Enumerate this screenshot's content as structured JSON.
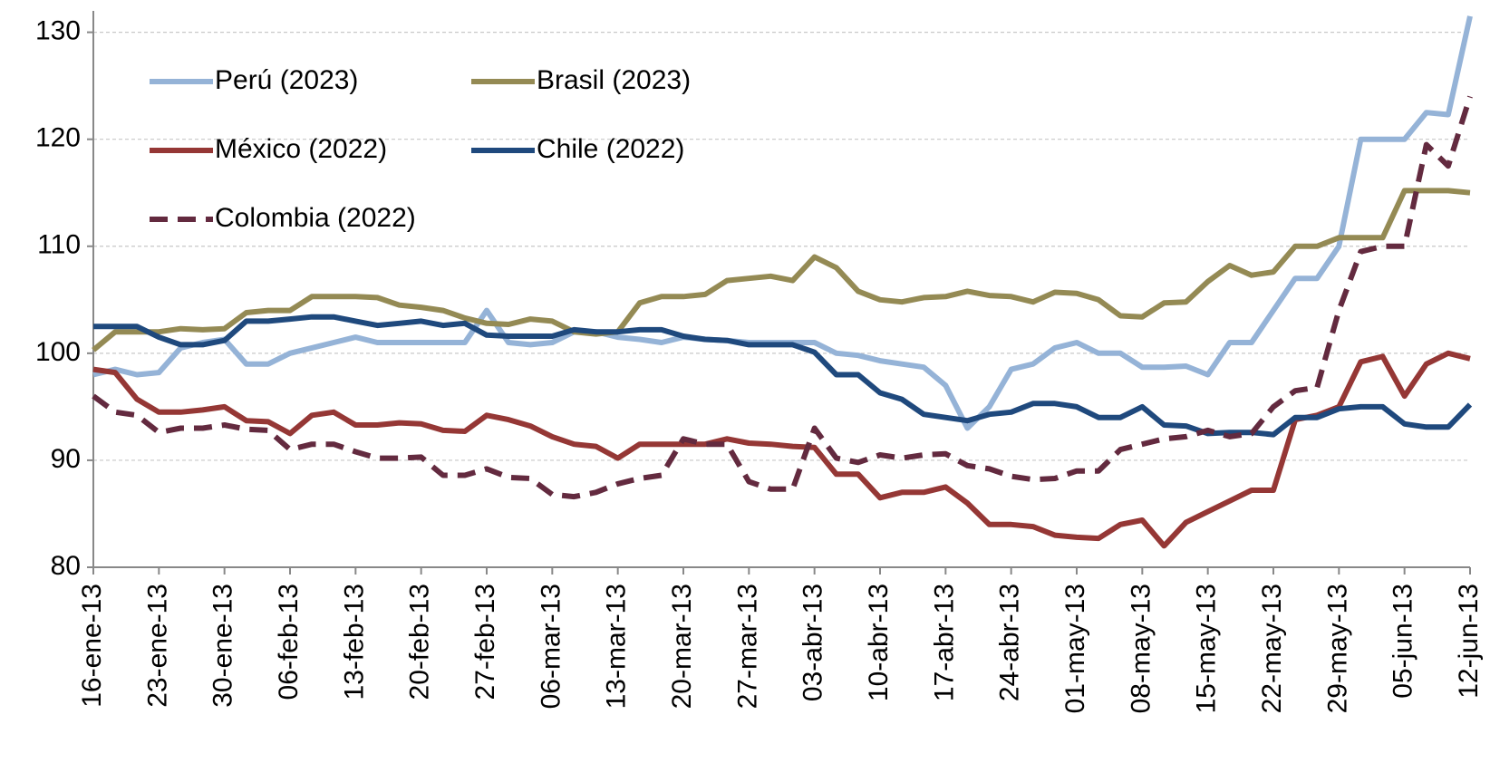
{
  "chart_data": {
    "type": "line",
    "categories": [
      "16-ene-13",
      null,
      null,
      "23-ene-13",
      null,
      null,
      "30-ene-13",
      null,
      null,
      "06-feb-13",
      null,
      null,
      "13-feb-13",
      null,
      null,
      "20-feb-13",
      null,
      null,
      "27-feb-13",
      null,
      null,
      "06-mar-13",
      null,
      null,
      "13-mar-13",
      null,
      null,
      "20-mar-13",
      null,
      null,
      "27-mar-13",
      null,
      null,
      "03-abr-13",
      null,
      null,
      "10-abr-13",
      null,
      null,
      "17-abr-13",
      null,
      null,
      "24-abr-13",
      null,
      null,
      "01-may-13",
      null,
      null,
      "08-may-13",
      null,
      null,
      "15-may-13",
      null,
      null,
      "22-may-13",
      null,
      null,
      "29-may-13",
      null,
      null,
      "05-jun-13",
      null,
      null,
      "12-jun-13"
    ],
    "series": [
      {
        "name": "Perú (2023)",
        "color": "#95b3d7",
        "dashed": false,
        "values": [
          98,
          98.5,
          98,
          98.2,
          100.5,
          101,
          101.3,
          99,
          99,
          100,
          100.5,
          101,
          101.5,
          101,
          101,
          101,
          101,
          101,
          104,
          101,
          100.8,
          101,
          102,
          102,
          101.5,
          101.3,
          101,
          101.5,
          101.3,
          101.2,
          101,
          101,
          101,
          101,
          100,
          99.8,
          99.3,
          99,
          98.7,
          97,
          93,
          95,
          98.5,
          99,
          100.5,
          101,
          100,
          100,
          98.7,
          98.7,
          98.8,
          98,
          101,
          101,
          104,
          107,
          107,
          110,
          120,
          120,
          120,
          122.5,
          122.3,
          131.5
        ]
      },
      {
        "name": "Brasil (2023)",
        "color": "#948a54",
        "dashed": false,
        "values": [
          100.3,
          102,
          102,
          102,
          102.3,
          102.2,
          102.3,
          103.8,
          104,
          104,
          105.3,
          105.3,
          105.3,
          105.2,
          104.5,
          104.3,
          104,
          103.3,
          102.8,
          102.7,
          103.2,
          103,
          102,
          101.8,
          102,
          104.7,
          105.3,
          105.3,
          105.5,
          106.8,
          107,
          107.2,
          106.8,
          109,
          108,
          105.8,
          105,
          104.8,
          105.2,
          105.3,
          105.8,
          105.4,
          105.3,
          104.8,
          105.7,
          105.6,
          105,
          103.5,
          103.4,
          104.7,
          104.8,
          106.7,
          108.2,
          107.3,
          107.6,
          110,
          110,
          110.8,
          110.8,
          110.8,
          115.2,
          115.2,
          115.2,
          115
        ]
      },
      {
        "name": "México (2022)",
        "color": "#953735",
        "dashed": false,
        "values": [
          98.5,
          98.2,
          95.7,
          94.5,
          94.5,
          94.7,
          95,
          93.7,
          93.6,
          92.5,
          94.2,
          94.5,
          93.3,
          93.3,
          93.5,
          93.4,
          92.8,
          92.7,
          94.2,
          93.8,
          93.2,
          92.2,
          91.5,
          91.3,
          90.2,
          91.5,
          91.5,
          91.5,
          91.5,
          92,
          91.6,
          91.5,
          91.3,
          91.2,
          88.7,
          88.7,
          86.5,
          87,
          87,
          87.5,
          86,
          84,
          84,
          83.8,
          83,
          82.8,
          82.7,
          84,
          84.4,
          82,
          84.2,
          85.2,
          86.2,
          87.2,
          87.2,
          93.8,
          94.2,
          95,
          99.2,
          99.7,
          96,
          99,
          100,
          99.5
        ]
      },
      {
        "name": "Chile (2022)",
        "color": "#1f497d",
        "dashed": false,
        "values": [
          102.5,
          102.5,
          102.5,
          101.5,
          100.8,
          100.8,
          101.2,
          103,
          103,
          103.2,
          103.4,
          103.4,
          103,
          102.6,
          102.8,
          103,
          102.6,
          102.8,
          101.7,
          101.6,
          101.6,
          101.6,
          102.2,
          102,
          102,
          102.2,
          102.2,
          101.6,
          101.3,
          101.2,
          100.8,
          100.8,
          100.8,
          100.1,
          98,
          98,
          96.3,
          95.7,
          94.3,
          94,
          93.7,
          94.3,
          94.5,
          95.3,
          95.3,
          95,
          94,
          94,
          95,
          93.3,
          93.2,
          92.5,
          92.6,
          92.6,
          92.4,
          94,
          94,
          94.8,
          95,
          95,
          93.4,
          93.1,
          93.1,
          95.2
        ]
      },
      {
        "name": "Colombia (2022)",
        "color": "#632a3f",
        "dashed": true,
        "values": [
          96,
          94.5,
          94.2,
          92.6,
          93,
          93,
          93.3,
          92.9,
          92.8,
          91,
          91.5,
          91.5,
          90.8,
          90.2,
          90.2,
          90.3,
          88.6,
          88.6,
          89.2,
          88.4,
          88.3,
          86.8,
          86.6,
          87,
          87.8,
          88.3,
          88.6,
          92,
          91.5,
          91.5,
          88,
          87.3,
          87.3,
          93,
          90.2,
          89.8,
          90.5,
          90.2,
          90.5,
          90.6,
          89.5,
          89.2,
          88.5,
          88.2,
          88.3,
          89,
          89,
          91,
          91.5,
          92,
          92.2,
          92.8,
          92.2,
          92.5,
          95,
          96.5,
          96.8,
          104,
          109.5,
          110,
          110,
          119.5,
          117.5,
          124
        ]
      }
    ],
    "ylim": [
      80,
      132
    ],
    "yticks": [
      80,
      90,
      100,
      110,
      120,
      130
    ],
    "grid": true,
    "legend": "upper left",
    "legend_columns": 2
  }
}
